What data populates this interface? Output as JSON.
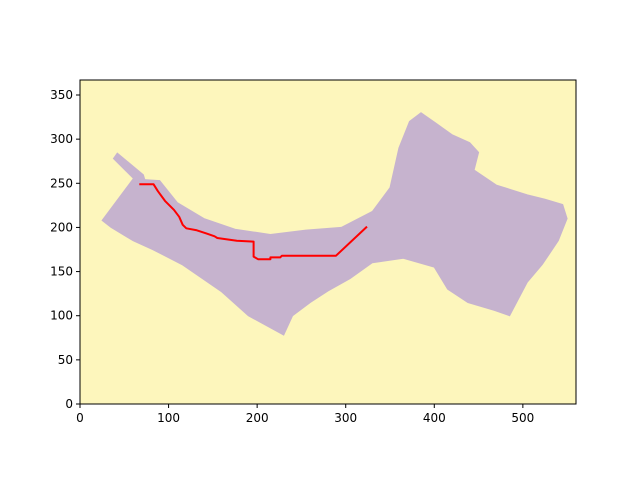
{
  "chart_data": {
    "type": "map-plot",
    "title": "",
    "xlabel": "",
    "ylabel": "",
    "xlim": [
      0,
      560
    ],
    "ylim": [
      0,
      367
    ],
    "xticks": [
      0,
      100,
      200,
      300,
      400,
      500
    ],
    "yticks": [
      0,
      50,
      100,
      150,
      200,
      250,
      300,
      350
    ],
    "grid": false,
    "colors": {
      "background_region": "#fdf6bc",
      "terrain_region": "#c6b3ce",
      "path": "#ff0000",
      "axes": "#000000"
    },
    "terrain_outline": [
      [
        25,
        208
      ],
      [
        60,
        255
      ],
      [
        90,
        253
      ],
      [
        110,
        228
      ],
      [
        140,
        210
      ],
      [
        175,
        198
      ],
      [
        215,
        192
      ],
      [
        255,
        197
      ],
      [
        295,
        200
      ],
      [
        330,
        218
      ],
      [
        350,
        245
      ],
      [
        360,
        290
      ],
      [
        372,
        320
      ],
      [
        385,
        330
      ],
      [
        402,
        318
      ],
      [
        420,
        305
      ],
      [
        440,
        296
      ],
      [
        450,
        285
      ],
      [
        445,
        265
      ],
      [
        470,
        248
      ],
      [
        505,
        237
      ],
      [
        525,
        232
      ],
      [
        545,
        226
      ],
      [
        550,
        210
      ],
      [
        540,
        185
      ],
      [
        522,
        158
      ],
      [
        505,
        138
      ],
      [
        485,
        100
      ],
      [
        468,
        106
      ],
      [
        438,
        115
      ],
      [
        415,
        130
      ],
      [
        400,
        155
      ],
      [
        365,
        165
      ],
      [
        330,
        160
      ],
      [
        305,
        142
      ],
      [
        280,
        128
      ],
      [
        260,
        115
      ],
      [
        240,
        100
      ],
      [
        230,
        78
      ],
      [
        190,
        100
      ],
      [
        160,
        127
      ],
      [
        115,
        158
      ],
      [
        82,
        175
      ],
      [
        60,
        185
      ],
      [
        35,
        200
      ],
      [
        25,
        208
      ]
    ],
    "terrain_spit": [
      [
        42,
        285
      ],
      [
        72,
        260
      ],
      [
        75,
        250
      ],
      [
        63,
        252
      ],
      [
        37,
        278
      ],
      [
        42,
        285
      ]
    ],
    "path": [
      [
        67,
        249
      ],
      [
        83,
        249
      ],
      [
        88,
        241
      ],
      [
        96,
        230
      ],
      [
        106,
        220
      ],
      [
        112,
        212
      ],
      [
        116,
        203
      ],
      [
        120,
        199
      ],
      [
        131,
        197
      ],
      [
        143,
        193
      ],
      [
        152,
        190
      ],
      [
        155,
        188
      ],
      [
        177,
        185
      ],
      [
        196,
        184
      ],
      [
        196,
        167
      ],
      [
        201,
        164
      ],
      [
        215,
        164
      ],
      [
        215,
        166
      ],
      [
        226,
        166
      ],
      [
        228,
        168
      ],
      [
        289,
        168
      ],
      [
        324,
        201
      ]
    ]
  }
}
